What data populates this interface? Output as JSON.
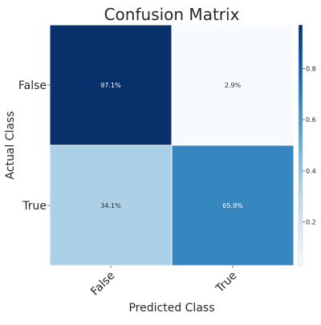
{
  "chart_data": {
    "type": "heatmap",
    "title": "Confusion Matrix",
    "xlabel": "Predicted Class",
    "ylabel": "Actual Class",
    "x_categories": [
      "False",
      "True"
    ],
    "y_categories": [
      "False",
      "True"
    ],
    "values": [
      [
        0.971,
        0.029
      ],
      [
        0.341,
        0.659
      ]
    ],
    "cell_labels": [
      [
        "97.1%",
        "2.9%"
      ],
      [
        "34.1%",
        "65.9%"
      ]
    ],
    "colormap": "Blues",
    "colorbar": {
      "range": [
        0.029,
        0.971
      ],
      "ticks": [
        0.2,
        0.4,
        0.6,
        0.8
      ],
      "tick_labels": [
        "0.2",
        "0.4",
        "0.6",
        "0.8"
      ]
    },
    "grid": false,
    "colors": {
      "dark": "#08306b",
      "light": "#f7fbff",
      "label_light_text": "#ffffff",
      "label_dark_text": "#262626"
    }
  }
}
